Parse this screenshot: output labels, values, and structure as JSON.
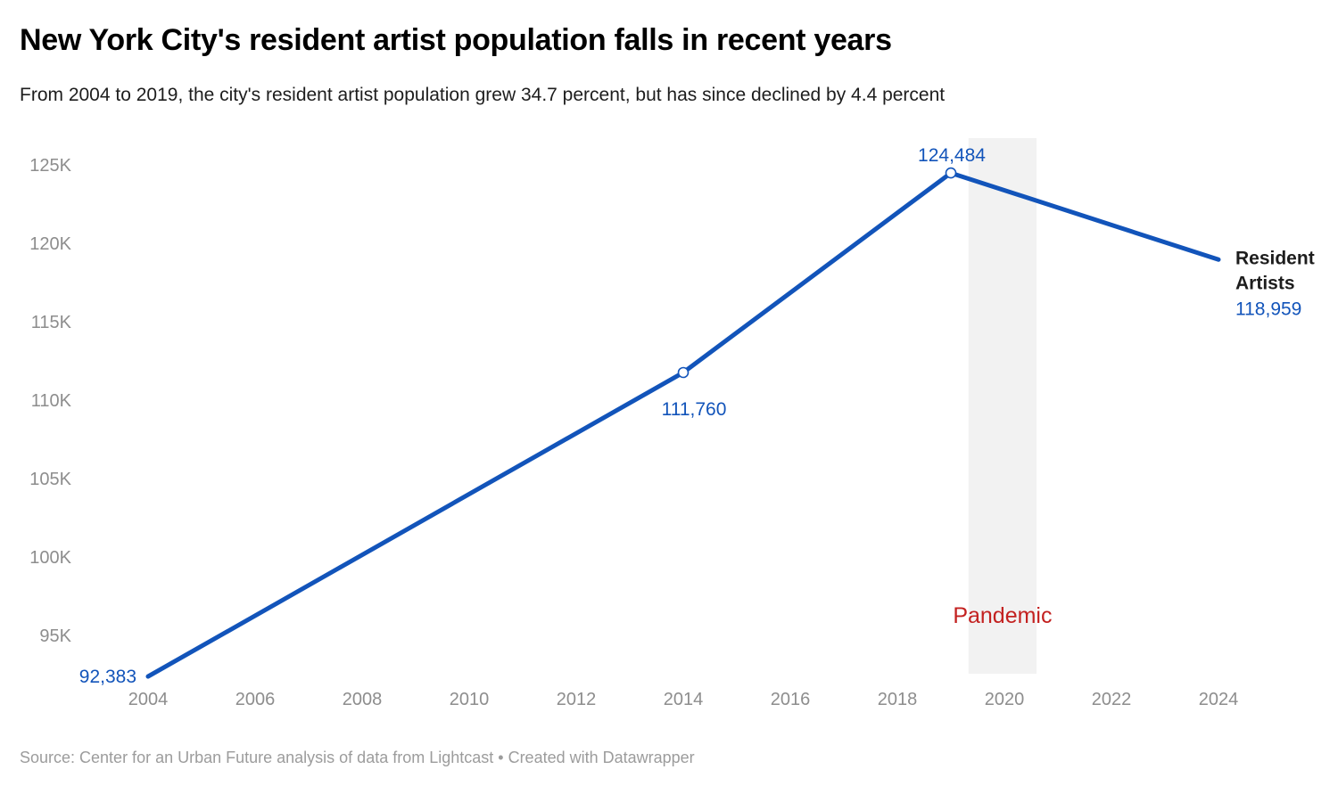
{
  "chart_data": {
    "type": "line",
    "title": "New York City's resident artist population falls in recent years",
    "subtitle": "From 2004 to 2019, the city's resident artist population grew 34.7 percent, but has since declined by 4.4 percent",
    "source": "Source: Center for an Urban Future analysis of data from Lightcast • Created with Datawrapper",
    "x": [
      2004,
      2014,
      2019,
      2024
    ],
    "series": [
      {
        "name": "Resident Artists",
        "values": [
          92383,
          111760,
          124484,
          118959
        ]
      }
    ],
    "x_ticks": [
      2004,
      2006,
      2008,
      2010,
      2012,
      2014,
      2016,
      2018,
      2020,
      2022,
      2024
    ],
    "y_ticks": [
      {
        "value": 95000,
        "label": "95K"
      },
      {
        "value": 100000,
        "label": "100K"
      },
      {
        "value": 105000,
        "label": "105K"
      },
      {
        "value": 110000,
        "label": "110K"
      },
      {
        "value": 115000,
        "label": "115K"
      },
      {
        "value": 120000,
        "label": "120K"
      },
      {
        "value": 125000,
        "label": "125K"
      }
    ],
    "ylim": [
      92000,
      127000
    ],
    "xlim": [
      2002.5,
      2025.8
    ],
    "grid": false,
    "legend_position": "direct-label-right",
    "point_labels": [
      {
        "year": 2004,
        "text": "92,383",
        "placement": "left",
        "marker": false
      },
      {
        "year": 2014,
        "text": "111,760",
        "placement": "below",
        "marker": true
      },
      {
        "year": 2019,
        "text": "124,484",
        "placement": "above",
        "marker": true
      }
    ],
    "end_label": {
      "name_lines": [
        "Resident",
        "Artists"
      ],
      "value_text": "118,959"
    },
    "annotation": {
      "text": "Pandemic",
      "band_start_year": 2019.33,
      "band_end_year": 2020.6
    }
  },
  "colors": {
    "line_blue": "#1254ba",
    "value_blue": "#1254ba",
    "annotation_red": "#c32120",
    "band_gray": "#f2f2f2",
    "tick_gray": "#8d8d8d",
    "source_gray": "#9c9c9c",
    "text_dark": "#1d1d1d",
    "marker_fill": "#ffffff"
  }
}
